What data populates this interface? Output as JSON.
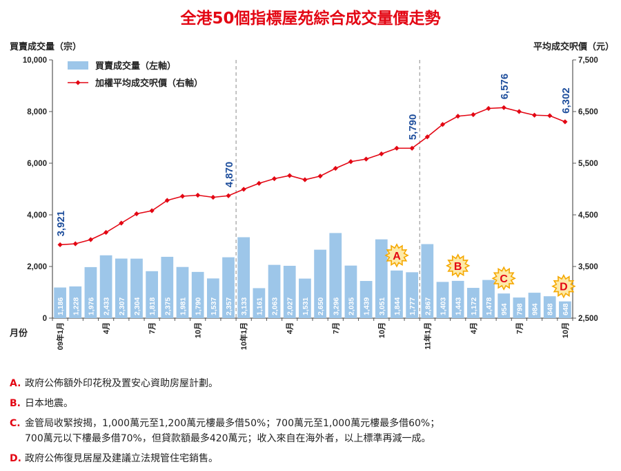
{
  "chart_data": {
    "type": "bar+line",
    "title": "全港50個指標屋苑綜合成交量價走勢",
    "left_axis_label": "買賣成交量（宗）",
    "right_axis_label": "平均成交呎價（元）",
    "xlabel": "月份",
    "ylim_left": [
      0,
      10000
    ],
    "ylim_right": [
      2500,
      7500
    ],
    "yticks_left": [
      "0",
      "2,000",
      "4,000",
      "6,000",
      "8,000",
      "10,000"
    ],
    "yticks_right": [
      "2,500",
      "3,500",
      "4,500",
      "5,500",
      "6,500",
      "7,500"
    ],
    "legend": {
      "bar": "買賣成交量（左軸）",
      "line": "加權平均成交呎價（右軸）",
      "position": "top-left"
    },
    "x_tick_labels": [
      "09年1月",
      "4月",
      "7月",
      "10月",
      "10年1月",
      "4月",
      "7月",
      "10月",
      "11年1月",
      "4月",
      "7月",
      "10月"
    ],
    "x_tick_indices": [
      0,
      3,
      6,
      9,
      12,
      15,
      18,
      21,
      24,
      27,
      30,
      33
    ],
    "dividers_after": [
      11,
      23
    ],
    "series": [
      {
        "name": "買賣成交量（左軸）",
        "type": "bar",
        "color": "#9dc6e9",
        "values": [
          1186,
          1228,
          1976,
          2433,
          2307,
          2304,
          1818,
          2375,
          1981,
          1790,
          1537,
          2357,
          3133,
          1161,
          2063,
          2027,
          1531,
          2650,
          3296,
          2035,
          1439,
          3051,
          1844,
          1777,
          2867,
          1403,
          1443,
          1172,
          1478,
          954,
          798,
          984,
          848,
          648
        ],
        "labels": [
          "1,186",
          "1,228",
          "1,976",
          "2,433",
          "2,307",
          "2,304",
          "1,818",
          "2,375",
          "1,981",
          "1,790",
          "1,537",
          "2,357",
          "3,133",
          "1,161",
          "2,063",
          "2,027",
          "1,531",
          "2,650",
          "3,296",
          "2,035",
          "1,439",
          "3,051",
          "1,844",
          "1,777",
          "2,867",
          "1,403",
          "1,443",
          "1,172",
          "1,478",
          "954",
          "798",
          "984",
          "848",
          "648"
        ]
      },
      {
        "name": "加權平均成交呎價（右軸）",
        "type": "line",
        "color": "#e30613",
        "values": [
          3921,
          3940,
          4020,
          4160,
          4340,
          4520,
          4580,
          4780,
          4860,
          4880,
          4840,
          4870,
          4995,
          5110,
          5200,
          5260,
          5180,
          5250,
          5400,
          5530,
          5580,
          5680,
          5790,
          5790,
          6010,
          6250,
          6410,
          6440,
          6560,
          6576,
          6500,
          6430,
          6420,
          6302
        ]
      }
    ],
    "line_callouts": [
      {
        "index": 0,
        "label": "3,921"
      },
      {
        "index": 11,
        "label": "4,870"
      },
      {
        "index": 23,
        "label": "5,790"
      },
      {
        "index": 29,
        "label": "6,576"
      },
      {
        "index": 33,
        "label": "6,302"
      }
    ],
    "event_markers": [
      {
        "letter": "A",
        "index": 22
      },
      {
        "letter": "B",
        "index": 26
      },
      {
        "letter": "C",
        "index": 29
      },
      {
        "letter": "D",
        "index": 33
      }
    ],
    "colors": {
      "callout": "#1e4e9c",
      "burst_fill": "#fde9a8",
      "burst_stroke": "#f5a800",
      "marker_letter": "#e30613",
      "axis": "#555555",
      "divider": "#888888"
    }
  },
  "notes": [
    {
      "letter": "A.",
      "text": "政府公佈額外印花稅及置安心資助房屋計劃。"
    },
    {
      "letter": "B.",
      "text": "日本地震。"
    },
    {
      "letter": "C.",
      "text": "金管局收緊按揭，1,000萬元至1,200萬元樓最多借50%；700萬元至1,000萬元樓最多借60%；\n700萬元以下樓最多借70%，但貸款額最多420萬元；收入來自在海外者，以上標準再減一成。"
    },
    {
      "letter": "D.",
      "text": "政府公佈復見居屋及建議立法規管住宅銷售。"
    }
  ]
}
